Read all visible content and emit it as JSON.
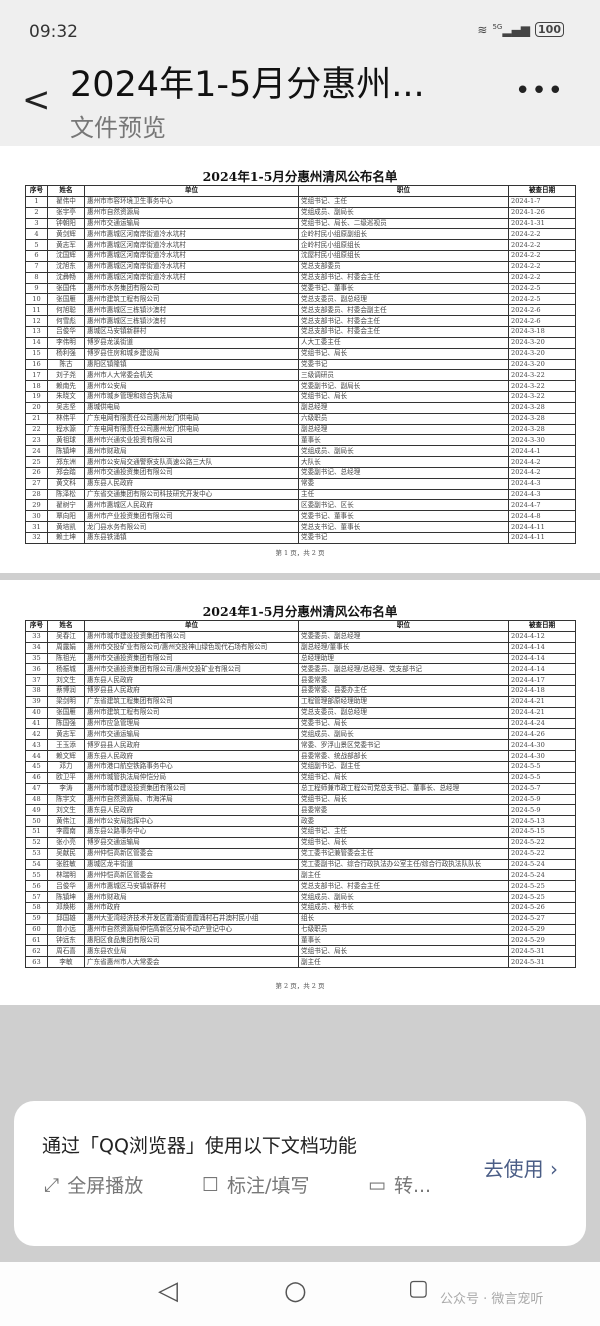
{
  "status": {
    "time": "09:32",
    "network": "5G",
    "battery": "100"
  },
  "appbar": {
    "title": "2024年1-5月分惠州...",
    "subtitle": "文件预览"
  },
  "document": {
    "title": "2024年1-5月分惠州清风公布名单",
    "headers": [
      "序号",
      "姓名",
      "单位",
      "职位",
      "被查日期"
    ],
    "pages": [
      {
        "footer": "第 1 页，共 2 页",
        "rows": [
          [
            "1",
            "翟伟中",
            "惠州市市容环境卫生事务中心",
            "党组书记、主任",
            "2024-1-7"
          ],
          [
            "2",
            "张宇亭",
            "惠州市自然资源局",
            "党组成员、副局长",
            "2024-1-26"
          ],
          [
            "3",
            "钟朝阳",
            "惠州市交通运输局",
            "党组书记、局长、二级巡视员",
            "2024-1-31"
          ],
          [
            "4",
            "黄剑辉",
            "惠州市惠城区河南岸街道冷水坑村",
            "企岭村民小组原副组长",
            "2024-2-2"
          ],
          [
            "5",
            "黄志军",
            "惠州市惠城区河南岸街道冷水坑村",
            "企岭村民小组原组长",
            "2024-2-2"
          ],
          [
            "6",
            "沈国辉",
            "惠州市惠城区河南岸街道冷水坑村",
            "沈屋村民小组原组长",
            "2024-2-2"
          ],
          [
            "7",
            "沈旭东",
            "惠州市惠城区河南岸街道冷水坑村",
            "党总支部委员",
            "2024-2-2"
          ],
          [
            "8",
            "沈彝畅",
            "惠州市惠城区河南岸街道冷水坑村",
            "党总支部书记、村委会主任",
            "2024-2-2"
          ],
          [
            "9",
            "张国伟",
            "惠州市水务集团有限公司",
            "党委书记、董事长",
            "2024-2-5"
          ],
          [
            "10",
            "张国雁",
            "惠州市建筑工程有限公司",
            "党总支委员、副总经理",
            "2024-2-5"
          ],
          [
            "11",
            "何旭聪",
            "惠州市惠城区三栋镇沙澳村",
            "党总支部委员、村委会副主任",
            "2024-2-6"
          ],
          [
            "12",
            "何雪彪",
            "惠州市惠城区三栋镇沙澳村",
            "党总支部书记、村委会主任",
            "2024-2-6"
          ],
          [
            "13",
            "吕俊华",
            "惠城区马安镇新群村",
            "党总支部书记、村委会主任",
            "2024-3-18"
          ],
          [
            "14",
            "李伟明",
            "博罗县龙溪街道",
            "人大工委主任",
            "2024-3-20"
          ],
          [
            "15",
            "杨利强",
            "博罗县住房和城乡建设局",
            "党组书记、局长",
            "2024-3-20"
          ],
          [
            "16",
            "陈古",
            "惠阳区镇隆镇",
            "党委书记",
            "2024-3-20"
          ],
          [
            "17",
            "刘子尧",
            "惠州市人大常委会机关",
            "三级调研员",
            "2024-3-22"
          ],
          [
            "18",
            "赖南先",
            "惠州市公安局",
            "党委副书记、副局长",
            "2024-3-22"
          ],
          [
            "19",
            "朱晓文",
            "惠州市城乡管理和综合执法局",
            "党组书记、局长",
            "2024-3-22"
          ],
          [
            "20",
            "吴志坚",
            "惠城供电局",
            "副总经理",
            "2024-3-28"
          ],
          [
            "21",
            "林伟平",
            "广东电网有限责任公司惠州龙门供电局",
            "六级职员",
            "2024-3-28"
          ],
          [
            "22",
            "程水源",
            "广东电网有限责任公司惠州龙门供电局",
            "副总经理",
            "2024-3-28"
          ],
          [
            "23",
            "黄祖球",
            "惠州市兴通实业投资有限公司",
            "董事长",
            "2024-3-30"
          ],
          [
            "24",
            "陈镇坤",
            "惠州市财政局",
            "党组成员、副局长",
            "2024-4-1"
          ],
          [
            "25",
            "郑东洲",
            "惠州市公安局交通警察支队高速公路三大队",
            "大队长",
            "2024-4-2"
          ],
          [
            "26",
            "郑会踏",
            "惠州市交通投资集团有限公司",
            "党委副书记、总经理",
            "2024-4-2"
          ],
          [
            "27",
            "黄文科",
            "惠东县人民政府",
            "常委",
            "2024-4-3"
          ],
          [
            "28",
            "陈泽松",
            "广东省交通集团有限公司科技研究开发中心",
            "主任",
            "2024-4-3"
          ],
          [
            "29",
            "翟树宁",
            "惠州市惠城区人民政府",
            "区委副书记、区长",
            "2024-4-7"
          ],
          [
            "30",
            "覃向阳",
            "惠州市产业投资集团有限公司",
            "党委书记、董事长",
            "2024-4-8"
          ],
          [
            "31",
            "黄培凯",
            "龙门县水务有限公司",
            "党总支书记、董事长",
            "2024-4-11"
          ],
          [
            "32",
            "赖土坤",
            "惠东县铁涌镇",
            "党委书记",
            "2024-4-11"
          ]
        ]
      },
      {
        "footer": "第 2 页，共 2 页",
        "rows": [
          [
            "33",
            "吴春江",
            "惠州市城市建设投资集团有限公司",
            "党委委员、副总经理",
            "2024-4-12"
          ],
          [
            "34",
            "周露娟",
            "惠州市交投矿业有限公司/惠州交投神山绿色现代石场有限公司",
            "副总经理/董事长",
            "2024-4-14"
          ],
          [
            "35",
            "陈祖光",
            "惠州市交通投资集团有限公司",
            "总经理助理",
            "2024-4-14"
          ],
          [
            "36",
            "杨振城",
            "惠州市交通投资集团有限公司/惠州交投矿业有限公司",
            "党委委员、副总经理/总经理、党支部书记",
            "2024-4-14"
          ],
          [
            "37",
            "刘文生",
            "惠东县人民政府",
            "县委常委",
            "2024-4-17"
          ],
          [
            "38",
            "蔡博润",
            "博罗县县人民政府",
            "县委常委、县委办主任",
            "2024-4-18"
          ],
          [
            "39",
            "梁剑明",
            "广东省建筑工程集团有限公司",
            "工程管理部原经理助理",
            "2024-4-21"
          ],
          [
            "40",
            "张国雁",
            "惠州市建筑工程有限公司",
            "党总支委员、副总经理",
            "2024-4-21"
          ],
          [
            "41",
            "陈国强",
            "惠州市应急管理局",
            "党委书记、局长",
            "2024-4-24"
          ],
          [
            "42",
            "黄志军",
            "惠州市交通运输局",
            "党组成员、副局长",
            "2024-4-26"
          ],
          [
            "43",
            "王玉添",
            "博罗县县人民政府",
            "常委、罗浮山景区党委书记",
            "2024-4-30"
          ],
          [
            "44",
            "赖文辉",
            "惠东县人民政府",
            "县委常委、统战部部长",
            "2024-4-30"
          ],
          [
            "45",
            "邓力",
            "惠州市港口航空铁路事务中心",
            "党组副书记、副主任",
            "2024-5-5"
          ],
          [
            "46",
            "欧卫平",
            "惠州市城管执法局仲恺分局",
            "党组书记、局长",
            "2024-5-5"
          ],
          [
            "47",
            "李涛",
            "惠州市城市建设投资集团有限公司",
            "总工程师兼市政工程公司党总支书记、董事长、总经理",
            "2024-5-7"
          ],
          [
            "48",
            "陈宇文",
            "惠州市自然资源局、市海洋局",
            "党组书记、局长",
            "2024-5-9"
          ],
          [
            "49",
            "刘文生",
            "惠东县人民政府",
            "县委常委",
            "2024-5-9"
          ],
          [
            "50",
            "黄伟江",
            "惠州市公安局指挥中心",
            "政委",
            "2024-5-13"
          ],
          [
            "51",
            "李霞南",
            "惠东县公路事务中心",
            "党组书记、主任",
            "2024-5-15"
          ],
          [
            "52",
            "张小亮",
            "博罗县交通运输局",
            "党组书记、局长",
            "2024-5-22"
          ],
          [
            "53",
            "吴献民",
            "惠州仲恺高新区管委会",
            "党工委书记兼管委会主任",
            "2024-5-22"
          ],
          [
            "54",
            "张胜敏",
            "惠城区龙丰街道",
            "党工委副书记、综合行政执法办公室主任/综合行政执法队队长",
            "2024-5-24"
          ],
          [
            "55",
            "林瑞明",
            "惠州仲恺高新区管委会",
            "副主任",
            "2024-5-24"
          ],
          [
            "56",
            "吕俊华",
            "惠州市惠城区马安镇新群村",
            "党总支部书记、村委会主任",
            "2024-5-25"
          ],
          [
            "57",
            "陈镇坤",
            "惠州市财政局",
            "党组成员、副局长",
            "2024-5-25"
          ],
          [
            "58",
            "邓焕彬",
            "惠州市政府",
            "党组成员、秘书长",
            "2024-5-26"
          ],
          [
            "59",
            "邱国雄",
            "惠州大亚湾经济技术开发区霞涌街道霞涌村石井澳村民小组",
            "组长",
            "2024-5-27"
          ],
          [
            "60",
            "曾小远",
            "惠州市自然资源局仲恺高新区分局不动产登记中心",
            "七级职员",
            "2024-5-29"
          ],
          [
            "61",
            "钟远东",
            "惠阳区食品集团有限公司",
            "董事长",
            "2024-5-29"
          ],
          [
            "62",
            "周石喜",
            "惠东县农业局",
            "党组书记、局长",
            "2024-5-31"
          ],
          [
            "63",
            "李敏",
            "广东省惠州市人大常委会",
            "副主任",
            "2024-5-31"
          ]
        ]
      }
    ]
  },
  "promo": {
    "text": "通过「QQ浏览器」使用以下文档功能",
    "features": [
      "全屏播放",
      "标注/填写",
      "转..."
    ],
    "action": "去使用 ›",
    "accent": "#4a5d86"
  },
  "watermark": "公众号 · 微言宠听"
}
